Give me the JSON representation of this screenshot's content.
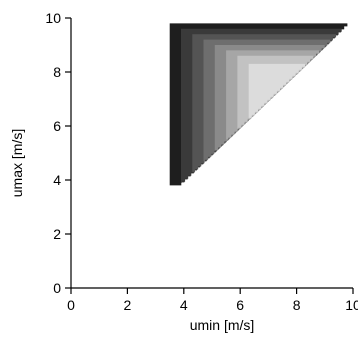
{
  "chart_data": {
    "type": "heatmap",
    "title": "",
    "xlabel": "umin [m/s]",
    "ylabel": "umax [m/s]",
    "xlim": [
      0,
      10
    ],
    "ylim": [
      0,
      10
    ],
    "x_ticks": [
      0,
      2,
      4,
      6,
      8,
      10
    ],
    "y_ticks": [
      0,
      2,
      4,
      6,
      8,
      10
    ],
    "x_tick_labels": [
      "0",
      "2",
      "4",
      "6",
      "8",
      "10"
    ],
    "y_tick_labels": [
      "0",
      "2",
      "4",
      "6",
      "8",
      "10"
    ],
    "grid": false,
    "legend": "none",
    "region": {
      "shape": "triangle",
      "umin_range": [
        3.5,
        9.5
      ],
      "umax_range": [
        3.8,
        9.8
      ],
      "boundary": "umax = umin"
    },
    "levels": [
      {
        "umin_from": 3.5,
        "umax_to": 9.8,
        "color": "#1e1e1e"
      },
      {
        "umin_from": 3.9,
        "umax_to": 9.6,
        "color": "#3a3a3a"
      },
      {
        "umin_from": 4.3,
        "umax_to": 9.4,
        "color": "#545454"
      },
      {
        "umin_from": 4.7,
        "umax_to": 9.2,
        "color": "#6e6e6e"
      },
      {
        "umin_from": 5.1,
        "umax_to": 9.0,
        "color": "#8a8a8a"
      },
      {
        "umin_from": 5.5,
        "umax_to": 8.8,
        "color": "#a6a6a6"
      },
      {
        "umin_from": 5.9,
        "umax_to": 8.6,
        "color": "#c2c2c2"
      },
      {
        "umin_from": 6.3,
        "umax_to": 8.3,
        "color": "#dcdcdc"
      }
    ]
  }
}
